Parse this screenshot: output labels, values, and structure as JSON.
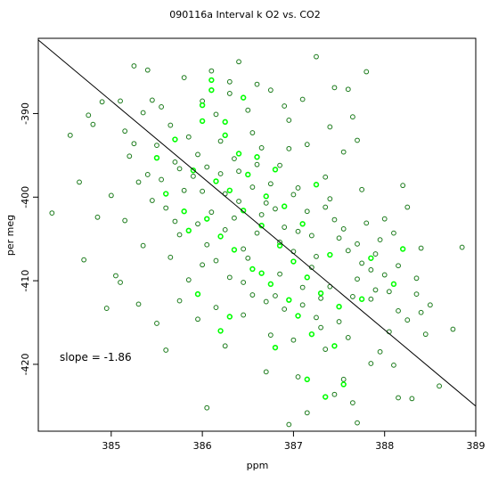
{
  "chart_data": {
    "type": "scatter",
    "title": "090116a    Interval k O2 vs. CO2",
    "xlabel": "ppm",
    "ylabel": "per meg",
    "xlim": [
      384.2,
      389.0
    ],
    "ylim": [
      -428.0,
      -381.0
    ],
    "xticks": [
      385,
      386,
      387,
      388,
      389
    ],
    "yticks": [
      -390,
      -400,
      -410,
      -420
    ],
    "grid": false,
    "annotation": "slope =  -1.86",
    "regression_line": {
      "x": [
        384.2,
        389.0
      ],
      "y": [
        -381.2,
        -425.0
      ]
    },
    "colors": {
      "dark": "#1a7a1a",
      "bright": "#00ff00",
      "line": "#000000"
    },
    "series": [
      {
        "marker": "open-circle",
        "color": "dark",
        "points": [
          [
            384.35,
            -401.9
          ],
          [
            384.55,
            -392.6
          ],
          [
            384.65,
            -398.2
          ],
          [
            384.7,
            -407.5
          ],
          [
            384.75,
            -390.2
          ],
          [
            384.8,
            -391.3
          ],
          [
            384.85,
            -402.4
          ],
          [
            384.9,
            -388.6
          ],
          [
            384.95,
            -413.3
          ],
          [
            385.0,
            -399.8
          ],
          [
            385.05,
            -409.4
          ],
          [
            385.1,
            -388.5
          ],
          [
            385.15,
            -392.1
          ],
          [
            385.2,
            -395.1
          ],
          [
            385.25,
            -384.3
          ],
          [
            385.3,
            -398.2
          ],
          [
            385.35,
            -389.9
          ],
          [
            385.4,
            -384.8
          ],
          [
            385.45,
            -388.4
          ],
          [
            385.5,
            -393.8
          ],
          [
            385.55,
            -397.9
          ],
          [
            385.6,
            -401.3
          ],
          [
            385.65,
            -391.4
          ],
          [
            385.7,
            -395.8
          ],
          [
            385.75,
            -404.5
          ],
          [
            385.8,
            -399.2
          ],
          [
            385.85,
            -392.8
          ],
          [
            385.9,
            -397.5
          ],
          [
            385.95,
            -403.2
          ],
          [
            386.0,
            -388.5
          ],
          [
            386.05,
            -396.4
          ],
          [
            386.1,
            -401.8
          ],
          [
            386.15,
            -407.6
          ],
          [
            386.2,
            -393.3
          ],
          [
            386.25,
            -399.6
          ],
          [
            386.3,
            -386.2
          ],
          [
            386.35,
            -402.5
          ],
          [
            386.4,
            -396.9
          ],
          [
            386.45,
            -410.2
          ],
          [
            386.5,
            -389.6
          ],
          [
            386.55,
            -398.8
          ],
          [
            386.6,
            -404.3
          ],
          [
            386.65,
            -394.1
          ],
          [
            386.7,
            -400.7
          ],
          [
            386.75,
            -387.2
          ],
          [
            386.8,
            -411.8
          ],
          [
            386.85,
            -396.2
          ],
          [
            386.9,
            -403.6
          ],
          [
            386.95,
            -390.8
          ],
          [
            387.0,
            -406.5
          ],
          [
            387.05,
            -398.9
          ],
          [
            387.1,
            -412.9
          ],
          [
            387.15,
            -393.7
          ],
          [
            387.2,
            -408.4
          ],
          [
            387.25,
            -383.2
          ],
          [
            387.3,
            -415.6
          ],
          [
            387.35,
            -401.2
          ],
          [
            387.4,
            -410.7
          ],
          [
            387.45,
            -386.9
          ],
          [
            387.5,
            -404.9
          ],
          [
            387.55,
            -394.6
          ],
          [
            387.6,
            -416.8
          ],
          [
            387.65,
            -390.4
          ],
          [
            387.7,
            -409.8
          ],
          [
            387.75,
            -399.1
          ],
          [
            387.8,
            -385.0
          ],
          [
            387.85,
            -412.2
          ],
          [
            387.9,
            -406.8
          ],
          [
            387.95,
            -418.5
          ],
          [
            388.0,
            -402.6
          ],
          [
            388.05,
            -411.3
          ],
          [
            388.1,
            -420.1
          ],
          [
            388.15,
            -408.2
          ],
          [
            388.2,
            -398.6
          ],
          [
            388.25,
            -414.7
          ],
          [
            388.3,
            -424.1
          ],
          [
            388.35,
            -411.6
          ],
          [
            388.4,
            -406.1
          ],
          [
            388.45,
            -416.4
          ],
          [
            388.5,
            -412.9
          ],
          [
            388.6,
            -422.6
          ],
          [
            388.75,
            -415.8
          ],
          [
            388.85,
            -406.0
          ],
          [
            386.05,
            -425.2
          ],
          [
            386.7,
            -420.9
          ],
          [
            386.95,
            -427.2
          ],
          [
            387.15,
            -425.8
          ],
          [
            387.65,
            -424.6
          ],
          [
            388.15,
            -424.0
          ],
          [
            385.5,
            -415.1
          ],
          [
            385.75,
            -412.4
          ],
          [
            385.95,
            -414.6
          ],
          [
            386.25,
            -417.8
          ],
          [
            386.55,
            -411.7
          ],
          [
            386.85,
            -409.2
          ],
          [
            387.05,
            -421.5
          ],
          [
            387.35,
            -418.2
          ],
          [
            387.55,
            -421.8
          ],
          [
            387.85,
            -419.9
          ],
          [
            385.25,
            -393.6
          ],
          [
            385.55,
            -389.2
          ],
          [
            385.95,
            -394.9
          ],
          [
            386.15,
            -390.1
          ],
          [
            386.35,
            -395.4
          ],
          [
            386.55,
            -392.3
          ],
          [
            386.75,
            -398.4
          ],
          [
            386.95,
            -394.2
          ],
          [
            387.15,
            -401.7
          ],
          [
            387.35,
            -397.6
          ],
          [
            387.55,
            -403.8
          ],
          [
            387.75,
            -407.9
          ],
          [
            387.95,
            -405.1
          ],
          [
            388.15,
            -413.6
          ],
          [
            388.35,
            -409.7
          ],
          [
            385.35,
            -405.8
          ],
          [
            385.65,
            -407.2
          ],
          [
            385.85,
            -409.9
          ],
          [
            386.05,
            -405.7
          ],
          [
            386.25,
            -403.9
          ],
          [
            386.45,
            -406.2
          ],
          [
            386.65,
            -402.1
          ],
          [
            386.85,
            -405.4
          ],
          [
            387.05,
            -404.1
          ],
          [
            387.25,
            -407.1
          ],
          [
            387.45,
            -402.7
          ],
          [
            387.65,
            -411.9
          ],
          [
            387.85,
            -408.7
          ],
          [
            388.05,
            -416.1
          ],
          [
            385.15,
            -402.8
          ],
          [
            385.45,
            -400.4
          ],
          [
            385.75,
            -396.6
          ],
          [
            386.0,
            -399.3
          ],
          [
            386.2,
            -397.2
          ],
          [
            386.4,
            -400.5
          ],
          [
            386.6,
            -396.1
          ],
          [
            386.8,
            -401.4
          ],
          [
            387.0,
            -399.7
          ],
          [
            387.2,
            -404.6
          ],
          [
            387.4,
            -400.2
          ],
          [
            387.6,
            -406.4
          ],
          [
            387.8,
            -403.1
          ],
          [
            388.0,
            -409.3
          ],
          [
            386.1,
            -384.9
          ],
          [
            386.3,
            -387.6
          ],
          [
            386.6,
            -386.5
          ],
          [
            386.9,
            -389.1
          ],
          [
            387.1,
            -388.3
          ],
          [
            387.4,
            -391.6
          ],
          [
            387.7,
            -393.2
          ],
          [
            385.8,
            -385.7
          ],
          [
            386.4,
            -383.8
          ],
          [
            387.6,
            -387.1
          ],
          [
            388.25,
            -401.2
          ],
          [
            388.4,
            -413.8
          ],
          [
            385.1,
            -410.2
          ],
          [
            385.3,
            -412.8
          ],
          [
            385.6,
            -418.3
          ],
          [
            386.15,
            -413.2
          ],
          [
            386.45,
            -414.1
          ],
          [
            386.75,
            -416.5
          ],
          [
            387.0,
            -417.1
          ],
          [
            387.25,
            -414.4
          ],
          [
            387.45,
            -423.6
          ],
          [
            387.7,
            -427.0
          ],
          [
            385.4,
            -397.3
          ],
          [
            385.7,
            -402.9
          ],
          [
            386.0,
            -408.1
          ],
          [
            386.3,
            -409.6
          ],
          [
            386.5,
            -407.3
          ],
          [
            386.7,
            -412.5
          ],
          [
            386.9,
            -413.4
          ],
          [
            387.1,
            -410.8
          ],
          [
            387.3,
            -412.1
          ],
          [
            387.5,
            -414.9
          ],
          [
            387.7,
            -405.6
          ],
          [
            387.9,
            -411.1
          ],
          [
            388.1,
            -404.3
          ]
        ]
      },
      {
        "marker": "open-circle",
        "color": "bright",
        "points": [
          [
            385.5,
            -395.3
          ],
          [
            385.6,
            -399.6
          ],
          [
            385.7,
            -393.1
          ],
          [
            385.8,
            -401.7
          ],
          [
            385.9,
            -396.8
          ],
          [
            386.0,
            -390.9
          ],
          [
            386.05,
            -402.6
          ],
          [
            386.1,
            -387.2
          ],
          [
            386.15,
            -398.1
          ],
          [
            386.2,
            -404.7
          ],
          [
            386.25,
            -392.6
          ],
          [
            386.3,
            -399.2
          ],
          [
            386.35,
            -406.3
          ],
          [
            386.4,
            -394.8
          ],
          [
            386.45,
            -401.6
          ],
          [
            386.5,
            -397.3
          ],
          [
            386.55,
            -408.6
          ],
          [
            386.6,
            -395.2
          ],
          [
            386.65,
            -403.4
          ],
          [
            386.7,
            -399.9
          ],
          [
            386.75,
            -410.4
          ],
          [
            386.8,
            -396.7
          ],
          [
            386.85,
            -405.8
          ],
          [
            386.9,
            -401.1
          ],
          [
            386.95,
            -412.3
          ],
          [
            387.0,
            -407.7
          ],
          [
            387.05,
            -414.2
          ],
          [
            387.1,
            -403.2
          ],
          [
            387.15,
            -409.6
          ],
          [
            387.2,
            -416.4
          ],
          [
            387.3,
            -411.5
          ],
          [
            387.4,
            -406.9
          ],
          [
            387.45,
            -417.8
          ],
          [
            387.5,
            -413.1
          ],
          [
            387.55,
            -422.4
          ],
          [
            387.75,
            -412.2
          ],
          [
            387.85,
            -407.3
          ],
          [
            388.1,
            -410.4
          ],
          [
            388.2,
            -406.2
          ],
          [
            386.1,
            -386.0
          ],
          [
            386.0,
            -389.0
          ],
          [
            386.2,
            -416.0
          ],
          [
            385.95,
            -411.6
          ],
          [
            386.3,
            -414.3
          ],
          [
            386.65,
            -409.1
          ],
          [
            387.35,
            -423.9
          ],
          [
            387.15,
            -421.8
          ],
          [
            386.8,
            -418.0
          ],
          [
            385.85,
            -404.0
          ],
          [
            386.45,
            -388.1
          ],
          [
            386.25,
            -391.0
          ],
          [
            387.25,
            -398.5
          ]
        ]
      }
    ]
  }
}
